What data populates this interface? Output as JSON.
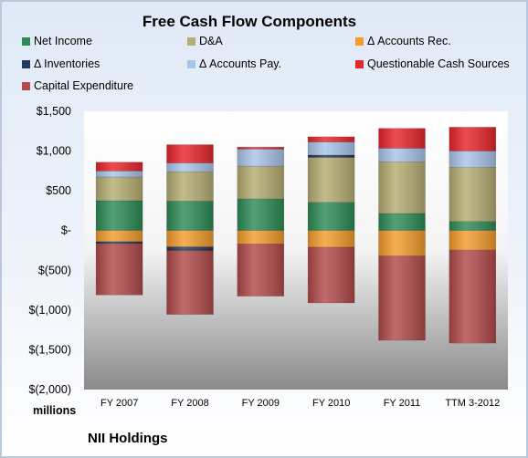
{
  "chart_data": {
    "type": "bar",
    "stacked": true,
    "title": "Free Cash Flow Components",
    "categories": [
      "FY 2007",
      "FY 2008",
      "FY 2009",
      "FY 2010",
      "FY 2011",
      "TTM 3-2012"
    ],
    "ylim": [
      -2000,
      1500
    ],
    "yticks": [
      1500,
      1000,
      500,
      0,
      -500,
      -1000,
      -1500,
      -2000
    ],
    "ytick_labels": [
      "$1,500",
      "$1,000",
      "$500",
      "$-",
      "$(500)",
      "$(1,000)",
      "$(1,500)",
      "$(2,000)"
    ],
    "ylabel": "millions",
    "grid": false,
    "legend_position": "top",
    "series": [
      {
        "name": "Net Income",
        "color": "#2e8b57",
        "values": [
          375,
          370,
          400,
          355,
          215,
          115
        ]
      },
      {
        "name": "D&A",
        "color": "#b5ad73",
        "values": [
          300,
          370,
          410,
          565,
          650,
          680
        ]
      },
      {
        "name": "Δ Accounts Rec.",
        "color": "#f39c2c",
        "values": [
          -140,
          -205,
          -170,
          -210,
          -320,
          -245
        ]
      },
      {
        "name": "Δ Inventories",
        "color": "#1f3a60",
        "values": [
          -25,
          -45,
          0,
          30,
          0,
          0
        ]
      },
      {
        "name": "Δ Accounts Pay.",
        "color": "#a8c4ea",
        "values": [
          75,
          110,
          215,
          165,
          170,
          205
        ]
      },
      {
        "name": "Questionable Cash Sources",
        "color": "#e8252b",
        "values": [
          110,
          230,
          25,
          65,
          250,
          300
        ]
      },
      {
        "name": "Capital Expenditure",
        "color": "#b24a4a",
        "values": [
          -645,
          -805,
          -655,
          -700,
          -1060,
          -1170
        ]
      }
    ]
  },
  "footer": {
    "units_label": "millions",
    "company": "NII Holdings"
  }
}
